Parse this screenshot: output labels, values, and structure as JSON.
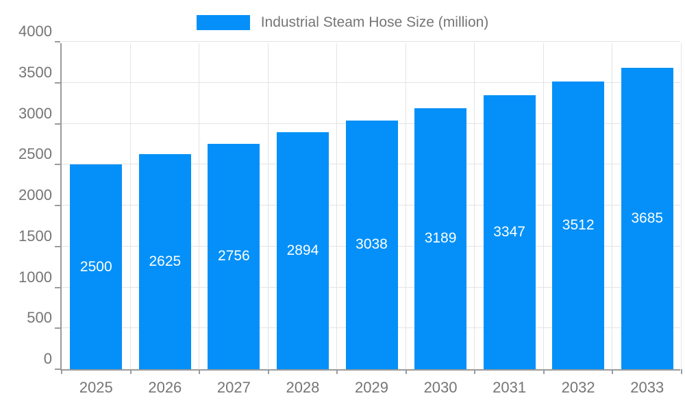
{
  "chart": {
    "legend_label": "Industrial Steam Hose Size (million)",
    "colors": {
      "bar": "#0490f8",
      "bar_label_text": "#ffffff",
      "grid": "#e3e3e3",
      "axis_line": "#9a9a9a",
      "axis_text": "#757575",
      "background": "#ffffff"
    }
  },
  "chart_data": {
    "type": "bar",
    "title": "Industrial Steam Hose Size (million)",
    "series": [
      {
        "name": "Industrial Steam Hose Size (million)",
        "values": [
          2500,
          2625,
          2756,
          2894,
          3038,
          3189,
          3347,
          3512,
          3685
        ]
      }
    ],
    "categories": [
      "2025",
      "2026",
      "2027",
      "2028",
      "2029",
      "2030",
      "2031",
      "2032",
      "2033"
    ],
    "xlabel": "",
    "ylabel": "",
    "ylim": [
      0,
      4000
    ],
    "ytick_step": 500,
    "ytick_labels": [
      "0",
      "500",
      "1000",
      "1500",
      "2000",
      "2500",
      "3000",
      "3500",
      "4000"
    ],
    "grid": true,
    "data_labels": "inside-center",
    "legend_position": "top-center"
  }
}
